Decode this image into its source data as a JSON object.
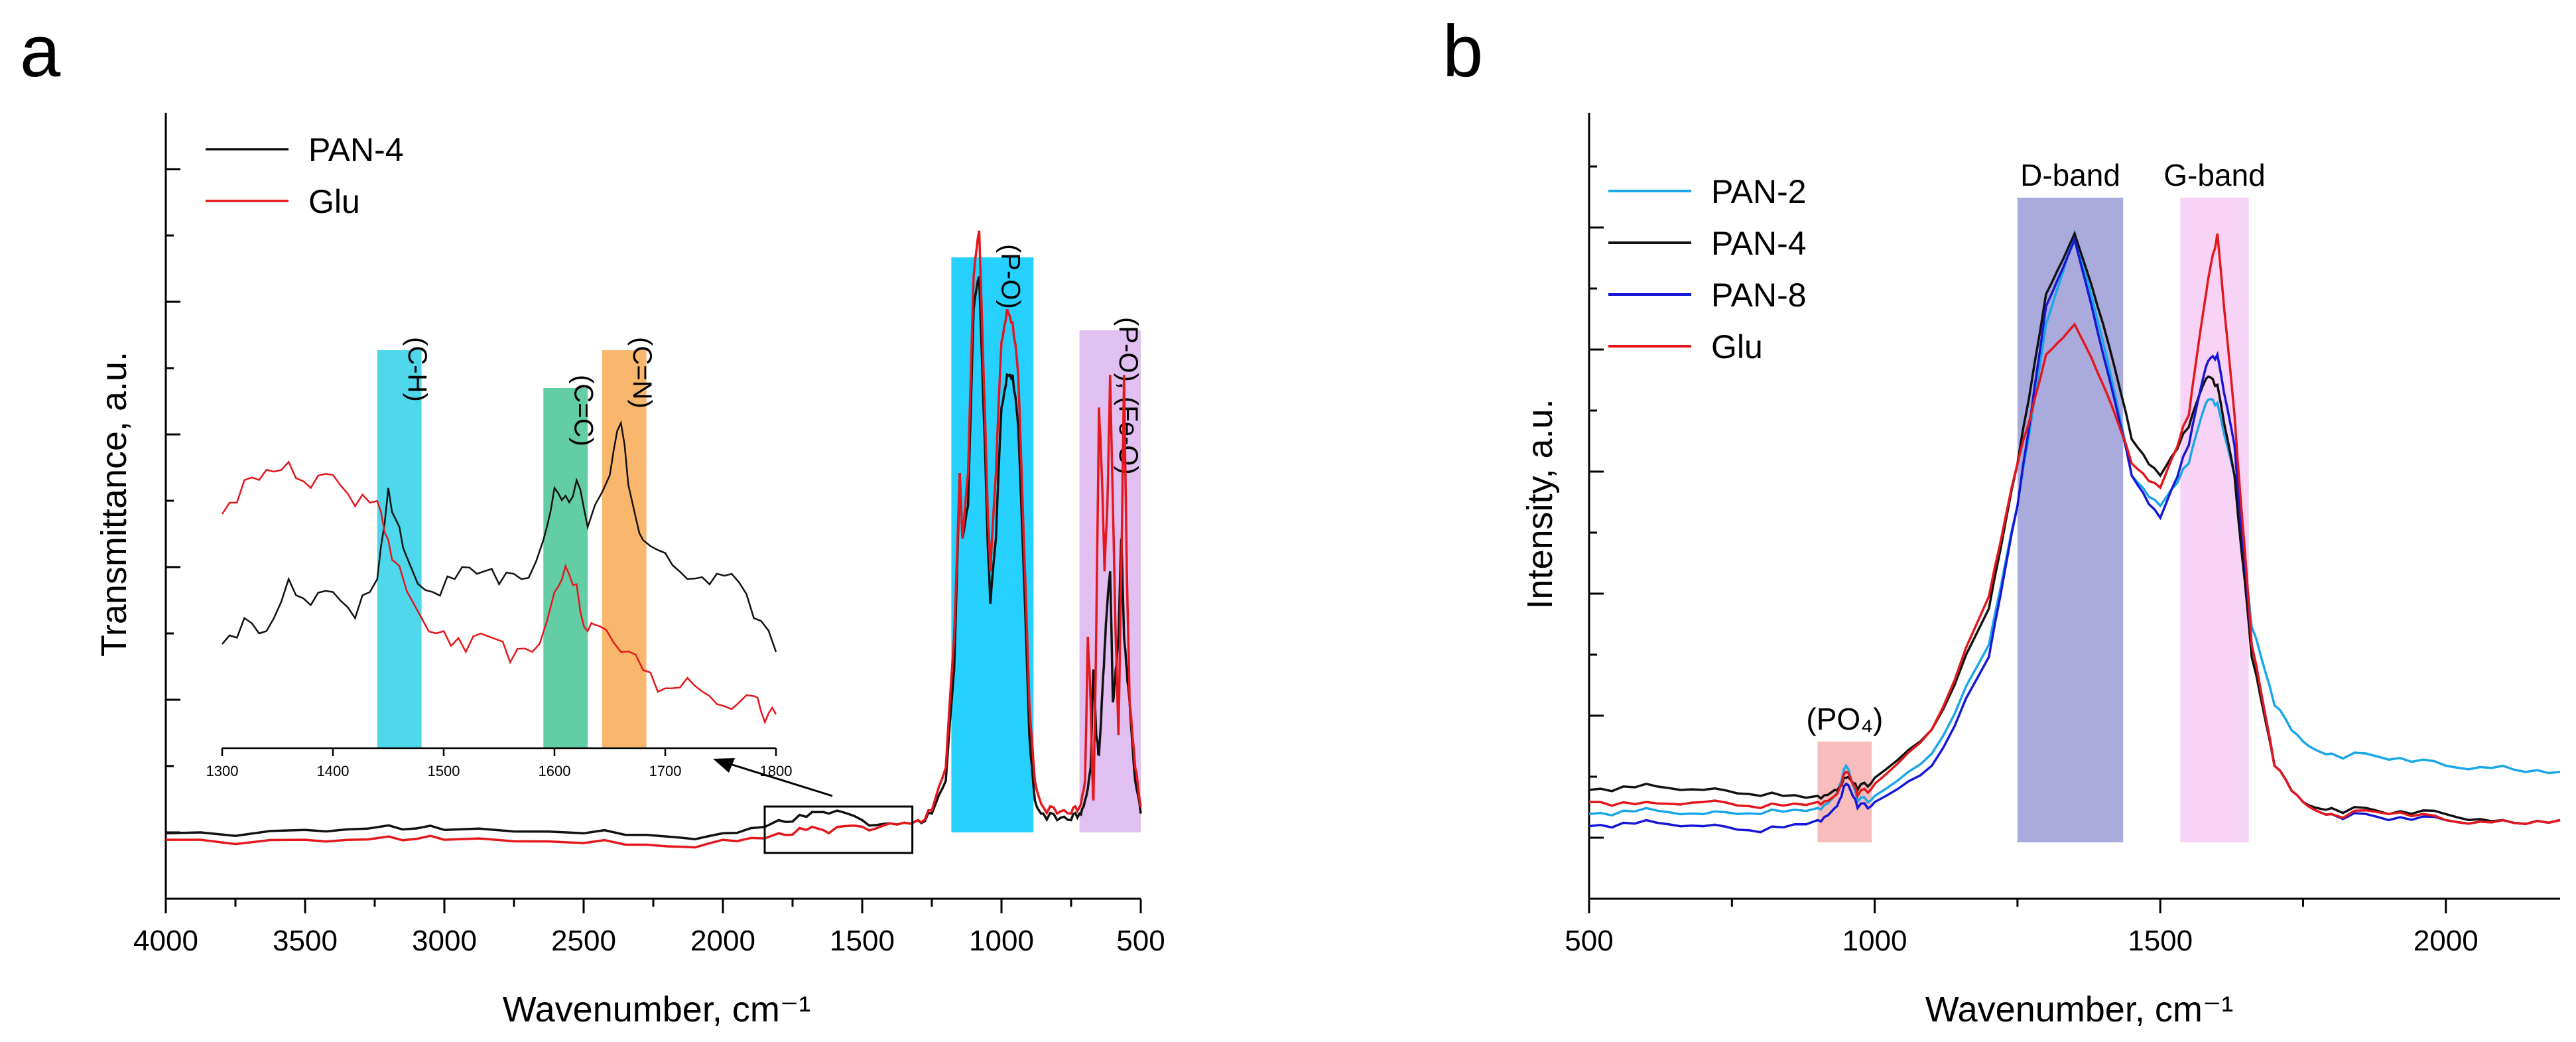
{
  "figure": {
    "panel_a_letter": "a",
    "panel_b_letter": "b"
  },
  "colors": {
    "black": "#111111",
    "red": "#e4171c",
    "lightblue": "#1aa7e8",
    "blue": "#1616d6",
    "cyan_band": "#23cde6",
    "teal_band": "#3cc08e",
    "orange_band": "#f7a548",
    "pi_band": "#00c8ff",
    "violet_band": "#c98ae6",
    "pink_band": "#f29a9a",
    "dband": "#8d8fd0",
    "gband": "#f2bcef"
  },
  "chart_data": [
    {
      "type": "line",
      "panel": "a",
      "xlabel": "Wavenumber, cm⁻¹",
      "ylabel": "Transmittance, a.u.",
      "xlim": [
        4000,
        500
      ],
      "ylim": [
        -0.1,
        1.1
      ],
      "x_reversed": true,
      "xticks": [
        "4000",
        "3500",
        "3000",
        "2500",
        "2000",
        "1500",
        "1000",
        "500"
      ],
      "legend": [
        "PAN-4",
        "Glu"
      ],
      "bands": [
        {
          "label": "(P-O)",
          "from": 1180,
          "to": 885,
          "color": "pi_band"
        },
        {
          "label": "(P-O), (Fe-O)",
          "from": 720,
          "to": 500,
          "color": "violet_band"
        }
      ],
      "series": [
        {
          "name": "PAN-4",
          "color": "black",
          "x": [
            4000,
            3500,
            3200,
            3000,
            2500,
            2200,
            2000,
            1800,
            1700,
            1620,
            1500,
            1400,
            1300,
            1250,
            1200,
            1170,
            1150,
            1140,
            1120,
            1100,
            1080,
            1060,
            1050,
            1040,
            1020,
            1000,
            980,
            960,
            940,
            920,
            900,
            880,
            850,
            800,
            750,
            720,
            700,
            680,
            670,
            660,
            650,
            640,
            630,
            620,
            610,
            600,
            590,
            580,
            570,
            560,
            550,
            540,
            520,
            500
          ],
          "y": [
            0.0,
            0.005,
            0.012,
            0.005,
            0.0,
            -0.005,
            0.0,
            0.02,
            0.025,
            0.03,
            0.02,
            0.015,
            0.02,
            0.03,
            0.08,
            0.25,
            0.55,
            0.45,
            0.5,
            0.8,
            0.85,
            0.6,
            0.45,
            0.35,
            0.45,
            0.65,
            0.7,
            0.7,
            0.62,
            0.4,
            0.15,
            0.05,
            0.03,
            0.02,
            0.02,
            0.03,
            0.05,
            0.1,
            0.25,
            0.15,
            0.12,
            0.2,
            0.28,
            0.35,
            0.4,
            0.2,
            0.25,
            0.3,
            0.45,
            0.3,
            0.25,
            0.2,
            0.08,
            0.03
          ]
        },
        {
          "name": "Glu",
          "color": "red",
          "x": [
            4000,
            3500,
            3200,
            3000,
            2500,
            2200,
            2000,
            1800,
            1700,
            1620,
            1500,
            1400,
            1300,
            1250,
            1200,
            1170,
            1150,
            1140,
            1120,
            1100,
            1080,
            1060,
            1050,
            1040,
            1020,
            1000,
            980,
            960,
            940,
            920,
            900,
            880,
            850,
            800,
            750,
            720,
            700,
            690,
            680,
            675,
            670,
            660,
            650,
            640,
            630,
            620,
            610,
            600,
            590,
            580,
            570,
            560,
            550,
            540,
            520,
            500
          ],
          "y": [
            -0.01,
            -0.01,
            -0.005,
            -0.01,
            -0.015,
            -0.02,
            -0.01,
            0.0,
            0.005,
            0.0,
            0.01,
            0.015,
            0.02,
            0.035,
            0.1,
            0.3,
            0.55,
            0.45,
            0.55,
            0.85,
            0.92,
            0.65,
            0.5,
            0.4,
            0.55,
            0.75,
            0.8,
            0.78,
            0.7,
            0.45,
            0.2,
            0.08,
            0.04,
            0.03,
            0.03,
            0.04,
            0.08,
            0.3,
            0.2,
            0.1,
            0.05,
            0.3,
            0.65,
            0.55,
            0.4,
            0.5,
            0.7,
            0.5,
            0.3,
            0.15,
            0.4,
            0.7,
            0.4,
            0.2,
            0.1,
            0.04
          ]
        }
      ],
      "inset": {
        "xlim": [
          1300,
          1800
        ],
        "xticks": [
          "1300",
          "1400",
          "1500",
          "1600",
          "1700",
          "1800"
        ],
        "bands": [
          {
            "label": "(C-H)",
            "from": 1440,
            "to": 1480,
            "color": "cyan_band"
          },
          {
            "label": "(C=C)",
            "from": 1590,
            "to": 1630,
            "color": "teal_band"
          },
          {
            "label": "(C=N)",
            "from": 1643,
            "to": 1683,
            "color": "orange_band"
          }
        ],
        "series": [
          {
            "name": "PAN-4",
            "color": "black",
            "x": [
              1300,
              1320,
              1340,
              1360,
              1380,
              1400,
              1420,
              1440,
              1450,
              1460,
              1470,
              1490,
              1510,
              1530,
              1550,
              1570,
              1590,
              1600,
              1610,
              1620,
              1630,
              1650,
              1660,
              1670,
              1680,
              1700,
              1720,
              1740,
              1760,
              1780,
              1800
            ],
            "y": [
              0.15,
              0.25,
              0.2,
              0.4,
              0.3,
              0.35,
              0.25,
              0.4,
              0.75,
              0.6,
              0.45,
              0.35,
              0.4,
              0.42,
              0.38,
              0.4,
              0.55,
              0.75,
              0.72,
              0.78,
              0.6,
              0.8,
              1.0,
              0.7,
              0.55,
              0.5,
              0.4,
              0.38,
              0.42,
              0.25,
              0.12
            ]
          },
          {
            "name": "Glu",
            "color": "red",
            "x": [
              1300,
              1320,
              1340,
              1360,
              1380,
              1400,
              1420,
              1440,
              1450,
              1460,
              1480,
              1500,
              1520,
              1540,
              1560,
              1580,
              1600,
              1610,
              1620,
              1630,
              1640,
              1660,
              1680,
              1700,
              1720,
              1740,
              1760,
              1780,
              1790,
              1800
            ],
            "y": [
              0.65,
              0.78,
              0.82,
              0.85,
              0.75,
              0.8,
              0.68,
              0.7,
              0.55,
              0.45,
              0.25,
              0.2,
              0.12,
              0.18,
              0.08,
              0.12,
              0.35,
              0.45,
              0.38,
              0.2,
              0.22,
              0.12,
              0.05,
              -0.02,
              0.02,
              -0.05,
              -0.1,
              -0.05,
              -0.15,
              -0.12
            ]
          }
        ]
      }
    },
    {
      "type": "line",
      "panel": "b",
      "xlabel": "Wavenumber, cm⁻¹",
      "ylabel": "Intensity, a.u.",
      "xlim": [
        500,
        2200
      ],
      "ylim": [
        -0.1,
        1.2
      ],
      "xticks": [
        "500",
        "1000",
        "1500",
        "2000"
      ],
      "legend": [
        "PAN-2",
        "PAN-4",
        "PAN-8",
        "Glu"
      ],
      "bands": [
        {
          "label": "(PO₄)",
          "from": 900,
          "to": 995,
          "color": "pink_band"
        },
        {
          "label": "D-band",
          "from": 1250,
          "to": 1435,
          "color": "dband"
        },
        {
          "label": "G-band",
          "from": 1535,
          "to": 1655,
          "color": "gband"
        }
      ],
      "series": [
        {
          "name": "PAN-2",
          "color": "lightblue",
          "x": [
            500,
            600,
            700,
            800,
            900,
            930,
            950,
            970,
            1000,
            1100,
            1200,
            1250,
            1300,
            1350,
            1400,
            1450,
            1500,
            1550,
            1580,
            1600,
            1630,
            1660,
            1700,
            1750,
            1800,
            1900,
            2000,
            2100,
            2200
          ],
          "y": [
            0.04,
            0.05,
            0.04,
            0.04,
            0.05,
            0.07,
            0.12,
            0.06,
            0.07,
            0.14,
            0.32,
            0.55,
            0.85,
            1.0,
            0.82,
            0.6,
            0.55,
            0.62,
            0.72,
            0.72,
            0.6,
            0.35,
            0.22,
            0.16,
            0.14,
            0.13,
            0.12,
            0.12,
            0.11
          ]
        },
        {
          "name": "PAN-4",
          "color": "black",
          "x": [
            500,
            600,
            700,
            800,
            900,
            930,
            950,
            970,
            1000,
            1100,
            1200,
            1250,
            1300,
            1350,
            1400,
            1450,
            1500,
            1550,
            1580,
            1600,
            1630,
            1660,
            1700,
            1750,
            1800,
            1900,
            2000,
            2100,
            2200
          ],
          "y": [
            0.08,
            0.09,
            0.08,
            0.07,
            0.07,
            0.08,
            0.1,
            0.08,
            0.1,
            0.18,
            0.38,
            0.62,
            0.9,
            1.0,
            0.85,
            0.66,
            0.6,
            0.68,
            0.76,
            0.75,
            0.6,
            0.3,
            0.12,
            0.06,
            0.05,
            0.04,
            0.04,
            0.03,
            0.03
          ]
        },
        {
          "name": "PAN-8",
          "color": "blue",
          "x": [
            500,
            600,
            700,
            800,
            900,
            930,
            950,
            970,
            1000,
            1100,
            1200,
            1250,
            1300,
            1350,
            1400,
            1450,
            1500,
            1550,
            1580,
            1600,
            1630,
            1660,
            1700,
            1750,
            1800,
            1900,
            2000,
            2100,
            2200
          ],
          "y": [
            0.02,
            0.03,
            0.02,
            0.01,
            0.03,
            0.05,
            0.09,
            0.05,
            0.06,
            0.12,
            0.3,
            0.55,
            0.88,
            0.99,
            0.8,
            0.6,
            0.53,
            0.65,
            0.78,
            0.8,
            0.65,
            0.32,
            0.12,
            0.06,
            0.04,
            0.03,
            0.03,
            0.03,
            0.03
          ]
        },
        {
          "name": "Glu",
          "color": "red",
          "x": [
            500,
            600,
            700,
            800,
            900,
            930,
            950,
            970,
            1000,
            1100,
            1200,
            1250,
            1300,
            1350,
            1400,
            1450,
            1500,
            1550,
            1580,
            1600,
            1630,
            1660,
            1700,
            1750,
            1800,
            1900,
            2000,
            2100,
            2200
          ],
          "y": [
            0.06,
            0.06,
            0.06,
            0.05,
            0.06,
            0.07,
            0.11,
            0.07,
            0.09,
            0.18,
            0.4,
            0.62,
            0.8,
            0.85,
            0.75,
            0.62,
            0.58,
            0.7,
            0.9,
            1.0,
            0.7,
            0.32,
            0.12,
            0.06,
            0.04,
            0.04,
            0.03,
            0.03,
            0.03
          ]
        }
      ]
    }
  ]
}
